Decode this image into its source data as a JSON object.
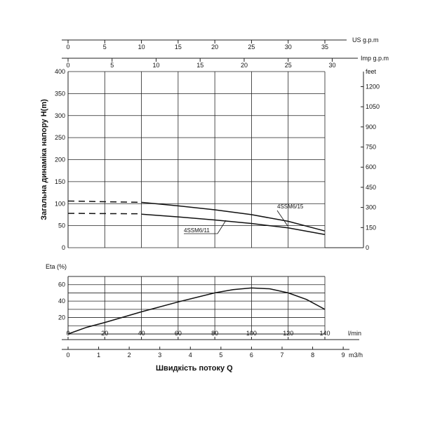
{
  "chart_data": [
    {
      "type": "line",
      "panel": "head",
      "ylabel": "Загальна динаміка напору H(m)",
      "x_unit": "l/min",
      "xlim": [
        0,
        150
      ],
      "ylim": [
        0,
        400
      ],
      "y_ticks": [
        0,
        50,
        100,
        150,
        200,
        250,
        300,
        350,
        400
      ],
      "feet_unit": "feet",
      "feet_ticks": [
        0,
        150,
        300,
        450,
        600,
        750,
        900,
        1050,
        1200
      ],
      "us_unit": "US g.p.m",
      "us_ticks": [
        0,
        5,
        10,
        15,
        20,
        25,
        30,
        35
      ],
      "imp_unit": "Imp g.p.m",
      "imp_ticks": [
        0,
        5,
        10,
        15,
        20,
        25,
        30
      ],
      "grid": true,
      "series": [
        {
          "name": "4SSM6/15",
          "dashed_x": [
            0,
            40
          ],
          "dashed_y": [
            106,
            103
          ],
          "x": [
            40,
            60,
            80,
            100,
            120,
            140
          ],
          "y": [
            103,
            95,
            86,
            75,
            60,
            38
          ]
        },
        {
          "name": "4SSM6/11",
          "dashed_x": [
            0,
            40
          ],
          "dashed_y": [
            78,
            77
          ],
          "x": [
            40,
            60,
            80,
            100,
            120,
            140
          ],
          "y": [
            76,
            70,
            63,
            55,
            45,
            30
          ]
        }
      ]
    },
    {
      "type": "line",
      "panel": "efficiency",
      "ylabel": "Eta (%)",
      "xlabel": "Швидкість потоку Q",
      "x_unit": "l/min",
      "xlim": [
        0,
        150
      ],
      "ylim": [
        0,
        70
      ],
      "y_ticks": [
        20,
        40,
        60
      ],
      "x_ticks": [
        0,
        20,
        40,
        60,
        80,
        100,
        120,
        140
      ],
      "m3h_unit": "m3/h",
      "m3h_ticks": [
        0,
        1,
        2,
        3,
        4,
        5,
        6,
        7,
        8,
        9
      ],
      "grid": true,
      "series": [
        {
          "x": [
            0,
            10,
            20,
            40,
            60,
            80,
            90,
            100,
            110,
            120,
            130,
            140
          ],
          "y": [
            0,
            8,
            14,
            27,
            39,
            50,
            54,
            56,
            55,
            50,
            42,
            30
          ]
        }
      ]
    }
  ]
}
